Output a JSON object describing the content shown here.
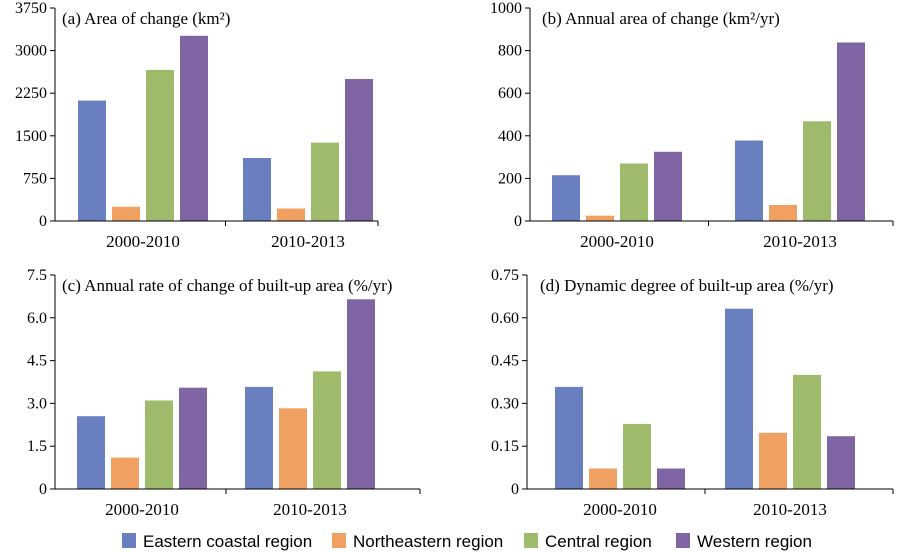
{
  "colors": [
    "#6a7fbf",
    "#f0a060",
    "#9dbb6a",
    "#7f65a3"
  ],
  "legend": [
    "Eastern coastal region",
    "Northeastern region",
    "Central region",
    "Western region"
  ],
  "chart_data": [
    {
      "type": "bar",
      "title": "(a) Area of change (km²)",
      "categories": [
        "2000-2010",
        "2010-2013"
      ],
      "yticks": [
        "0",
        "750",
        "1500",
        "2250",
        "3000",
        "3750"
      ],
      "ylim": [
        0,
        3750
      ],
      "series": [
        {
          "name": "Eastern coastal region",
          "values": [
            2120,
            1110
          ]
        },
        {
          "name": "Northeastern region",
          "values": [
            250,
            220
          ]
        },
        {
          "name": "Central region",
          "values": [
            2660,
            1380
          ]
        },
        {
          "name": "Western region",
          "values": [
            3260,
            2500
          ]
        }
      ]
    },
    {
      "type": "bar",
      "title": "(b) Annual area of change (km²/yr)",
      "categories": [
        "2000-2010",
        "2010-2013"
      ],
      "yticks": [
        "0",
        "200",
        "400",
        "600",
        "800",
        "1000"
      ],
      "ylim": [
        0,
        1000
      ],
      "series": [
        {
          "name": "Eastern coastal region",
          "values": [
            215,
            378
          ]
        },
        {
          "name": "Northeastern region",
          "values": [
            25,
            75
          ]
        },
        {
          "name": "Central region",
          "values": [
            270,
            468
          ]
        },
        {
          "name": "Western region",
          "values": [
            325,
            838
          ]
        }
      ]
    },
    {
      "type": "bar",
      "title": "(c) Annual rate of change of built-up area (%/yr)",
      "categories": [
        "2000-2010",
        "2010-2013"
      ],
      "yticks": [
        "0",
        "1.5",
        "3.0",
        "4.5",
        "6.0",
        "7.5"
      ],
      "ylim": [
        0,
        7.5
      ],
      "series": [
        {
          "name": "Eastern coastal region",
          "values": [
            2.55,
            3.58
          ]
        },
        {
          "name": "Northeastern region",
          "values": [
            1.1,
            2.83
          ]
        },
        {
          "name": "Central region",
          "values": [
            3.1,
            4.12
          ]
        },
        {
          "name": "Western region",
          "values": [
            3.55,
            6.65
          ]
        }
      ]
    },
    {
      "type": "bar",
      "title": "(d) Dynamic degree of built-up area (%/yr)",
      "categories": [
        "2000-2010",
        "2010-2013"
      ],
      "yticks": [
        "0",
        "0.15",
        "0.30",
        "0.45",
        "0.60",
        "0.75"
      ],
      "ylim": [
        0,
        0.75
      ],
      "series": [
        {
          "name": "Eastern coastal region",
          "values": [
            0.358,
            0.632
          ]
        },
        {
          "name": "Northeastern region",
          "values": [
            0.072,
            0.197
          ]
        },
        {
          "name": "Central region",
          "values": [
            0.228,
            0.4
          ]
        },
        {
          "name": "Western region",
          "values": [
            0.072,
            0.185
          ]
        }
      ]
    }
  ]
}
